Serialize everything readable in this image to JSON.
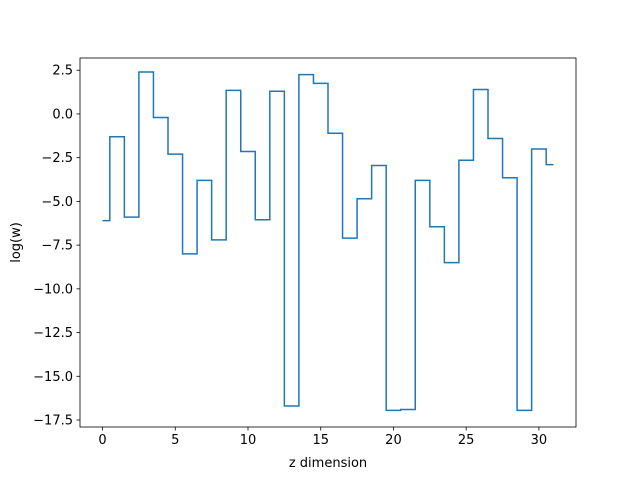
{
  "chart_data": {
    "type": "line",
    "drawstyle": "steps-mid",
    "title": "",
    "xlabel": "z dimension",
    "ylabel": "log(w)",
    "xlim": [
      -1.55,
      32.55
    ],
    "ylim": [
      -17.9,
      3.2
    ],
    "xticks": [
      0,
      5,
      10,
      15,
      20,
      25,
      30
    ],
    "yticks": [
      2.5,
      0.0,
      -2.5,
      -5.0,
      -7.5,
      -10.0,
      -12.5,
      -15.0,
      -17.5
    ],
    "xtick_labels": [
      "0",
      "5",
      "10",
      "15",
      "20",
      "25",
      "30"
    ],
    "ytick_labels": [
      "2.5",
      "0.0",
      "−2.5",
      "−5.0",
      "−7.5",
      "−10.0",
      "−12.5",
      "−15.0",
      "−17.5"
    ],
    "grid": false,
    "series": [
      {
        "color": "#1f77b4",
        "x": [
          0,
          1,
          2,
          3,
          4,
          5,
          6,
          7,
          8,
          9,
          10,
          11,
          12,
          13,
          14,
          15,
          16,
          17,
          18,
          19,
          20,
          21,
          22,
          23,
          24,
          25,
          26,
          27,
          28,
          29,
          30,
          31
        ],
        "y": [
          -6.1,
          -1.3,
          -5.9,
          2.4,
          -0.2,
          -2.3,
          -8.0,
          -3.8,
          -7.2,
          1.35,
          -2.15,
          -6.05,
          1.3,
          -16.7,
          2.25,
          1.75,
          -1.1,
          -7.1,
          -4.85,
          -2.95,
          -16.95,
          -16.9,
          -3.8,
          -6.45,
          -8.5,
          -2.65,
          1.4,
          -1.4,
          -3.65,
          -16.95,
          -2.0,
          -2.9
        ]
      }
    ]
  }
}
